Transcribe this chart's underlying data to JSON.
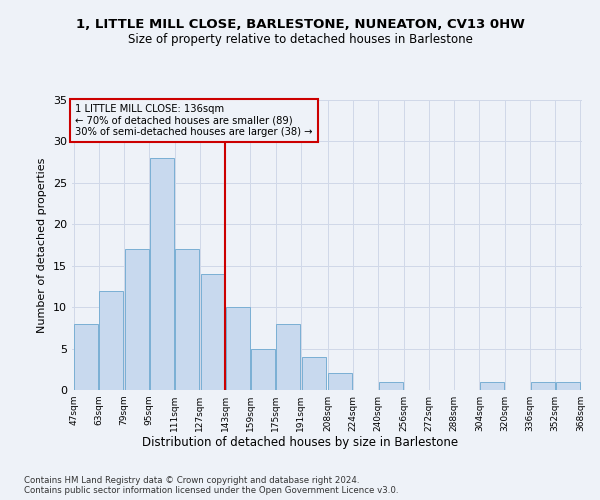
{
  "title1": "1, LITTLE MILL CLOSE, BARLESTONE, NUNEATON, CV13 0HW",
  "title2": "Size of property relative to detached houses in Barlestone",
  "xlabel": "Distribution of detached houses by size in Barlestone",
  "ylabel": "Number of detached properties",
  "bar_left_edges": [
    47,
    63,
    79,
    95,
    111,
    127,
    143,
    159,
    175,
    191,
    208,
    224,
    240,
    256,
    272,
    288,
    304,
    320,
    336,
    352
  ],
  "bar_heights": [
    8,
    12,
    17,
    28,
    17,
    14,
    10,
    5,
    8,
    4,
    2,
    0,
    1,
    0,
    0,
    0,
    1,
    0,
    1,
    1
  ],
  "bin_width": 16,
  "bar_color": "#c8d9ee",
  "bar_edge_color": "#7aafd4",
  "grid_color": "#d0d8e8",
  "vline_x": 143,
  "vline_color": "#cc0000",
  "annotation_text": "1 LITTLE MILL CLOSE: 136sqm\n← 70% of detached houses are smaller (89)\n30% of semi-detached houses are larger (38) →",
  "annotation_box_color": "#cc0000",
  "ylim": [
    0,
    35
  ],
  "yticks": [
    0,
    5,
    10,
    15,
    20,
    25,
    30,
    35
  ],
  "xtick_labels": [
    "47sqm",
    "63sqm",
    "79sqm",
    "95sqm",
    "111sqm",
    "127sqm",
    "143sqm",
    "159sqm",
    "175sqm",
    "191sqm",
    "208sqm",
    "224sqm",
    "240sqm",
    "256sqm",
    "272sqm",
    "288sqm",
    "304sqm",
    "320sqm",
    "336sqm",
    "352sqm",
    "368sqm"
  ],
  "footnote": "Contains HM Land Registry data © Crown copyright and database right 2024.\nContains public sector information licensed under the Open Government Licence v3.0.",
  "background_color": "#eef2f8",
  "plot_bg_color": "#eef2f8"
}
